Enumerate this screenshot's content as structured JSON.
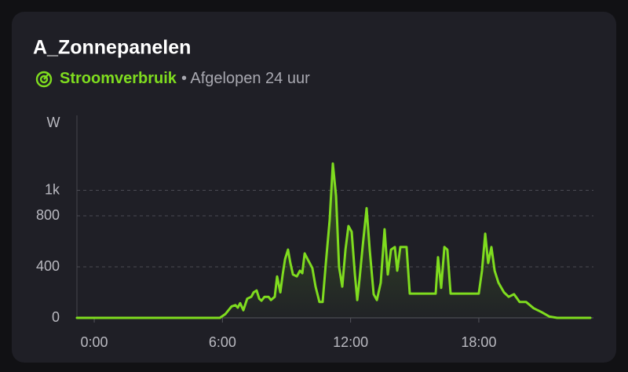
{
  "chart_data": {
    "type": "line",
    "title": "A_Zonnepanelen",
    "metric": "Stroomverbruik",
    "period": "• Afgelopen 24 uur",
    "y_label": "W",
    "color": "#7fdc1f",
    "grid": true,
    "xlim": [
      -0.81,
      23.22
    ],
    "xticks": [
      {
        "value": 0,
        "label": "0:00"
      },
      {
        "value": 6,
        "label": "6:00"
      },
      {
        "value": 12,
        "label": "12:00"
      },
      {
        "value": 18,
        "label": "18:00"
      }
    ],
    "ylim": [
      0,
      1600
    ],
    "yticks": [
      0,
      400,
      800,
      {
        "value": 1000,
        "label": "1k"
      }
    ],
    "x": [
      -0.81,
      5.88,
      6.14,
      6.43,
      6.61,
      6.72,
      6.83,
      6.98,
      7.16,
      7.35,
      7.46,
      7.6,
      7.72,
      7.83,
      7.97,
      8.16,
      8.27,
      8.45,
      8.56,
      8.71,
      8.82,
      8.93,
      9.07,
      9.18,
      9.3,
      9.48,
      9.63,
      9.74,
      9.85,
      9.99,
      10.21,
      10.36,
      10.54,
      10.69,
      10.84,
      11.02,
      11.17,
      11.32,
      11.46,
      11.61,
      11.76,
      11.9,
      12.05,
      12.2,
      12.31,
      12.42,
      12.56,
      12.75,
      12.9,
      13.08,
      13.23,
      13.41,
      13.59,
      13.74,
      13.89,
      14.07,
      14.18,
      14.33,
      14.62,
      14.77,
      15.98,
      16.09,
      16.24,
      16.39,
      16.53,
      16.68,
      18.0,
      18.15,
      18.3,
      18.44,
      18.59,
      18.74,
      18.92,
      19.18,
      19.4,
      19.65,
      19.91,
      20.21,
      20.57,
      20.94,
      21.31,
      21.67,
      23.22
    ],
    "values": [
      0,
      0,
      30,
      90,
      100,
      80,
      115,
      60,
      150,
      165,
      200,
      215,
      150,
      135,
      165,
      165,
      140,
      165,
      325,
      200,
      340,
      460,
      535,
      430,
      340,
      325,
      370,
      350,
      505,
      460,
      390,
      245,
      125,
      125,
      430,
      770,
      1210,
      955,
      400,
      245,
      535,
      720,
      675,
      340,
      140,
      310,
      555,
      860,
      525,
      185,
      140,
      275,
      695,
      340,
      535,
      555,
      370,
      555,
      555,
      190,
      190,
      475,
      235,
      555,
      535,
      190,
      190,
      370,
      660,
      430,
      555,
      370,
      275,
      200,
      165,
      185,
      125,
      125,
      75,
      45,
      10,
      0,
      0
    ]
  }
}
